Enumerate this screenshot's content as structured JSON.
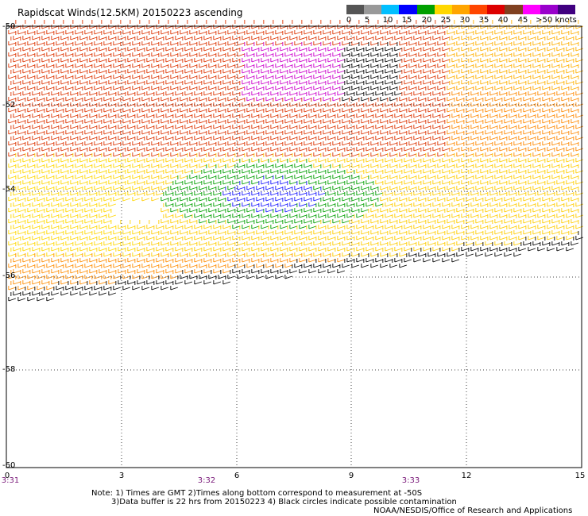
{
  "title": "Rapidscat Winds(12.5KM) 20150223 ascending",
  "scale": {
    "colors": [
      "#555555",
      "#999999",
      "#00bfff",
      "#0000ff",
      "#00a000",
      "#ffd700",
      "#ffa500",
      "#ff4500",
      "#dd0000",
      "#804020",
      "#ff00ff",
      "#9900cc",
      "#400080"
    ],
    "labels": [
      "0",
      "5",
      "10",
      "15",
      "20",
      "25",
      "30",
      "35",
      "40",
      "45",
      ">50 knots"
    ]
  },
  "axes": {
    "lat_labels": [
      "-50",
      "-52",
      "-54",
      "-56",
      "-58",
      "-60"
    ],
    "lon_labels": [
      "0",
      "3",
      "6",
      "9",
      "12",
      "15"
    ],
    "time_labels": [
      "3:31",
      "3:32",
      "3:33"
    ]
  },
  "notes": {
    "line1": "Note: 1) Times are GMT 2)Times along bottom correspond to measurement at -50S",
    "line2": "3)Data buffer is 22 hrs from 20150223 4) Black circles indicate possible contamination",
    "credit": "NOAA/NESDIS/Office of Research and Applications"
  }
}
